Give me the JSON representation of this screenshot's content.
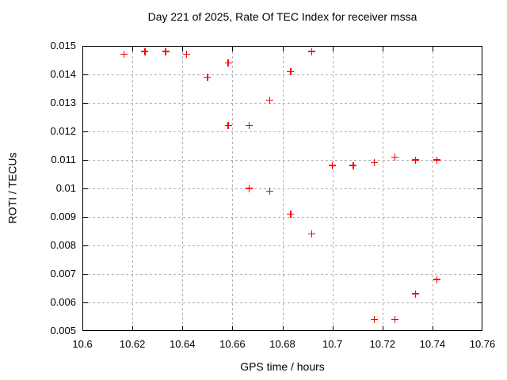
{
  "chart_data": {
    "type": "scatter",
    "title": "Day 221 of 2025, Rate Of TEC Index for receiver mssa",
    "xlabel": "GPS time / hours",
    "ylabel": "ROTI / TECUs",
    "xlim": [
      10.6,
      10.76
    ],
    "ylim": [
      0.005,
      0.015
    ],
    "xticks": {
      "values": [
        10.6,
        10.62,
        10.64,
        10.66,
        10.68,
        10.7,
        10.72,
        10.74,
        10.76
      ],
      "labels": [
        "10.6",
        "10.62",
        "10.64",
        "10.66",
        "10.68",
        "10.7",
        "10.72",
        "10.74",
        "10.76"
      ]
    },
    "yticks": {
      "values": [
        0.005,
        0.006,
        0.007,
        0.008,
        0.009,
        0.01,
        0.011,
        0.012,
        0.013,
        0.014,
        0.015
      ],
      "labels": [
        "0.005",
        "0.006",
        "0.007",
        "0.008",
        "0.009",
        "0.01",
        "0.011",
        "0.012",
        "0.013",
        "0.014",
        "0.015"
      ]
    },
    "grid": true,
    "legend": false,
    "marker": "plus",
    "marker_color": "#ff0000",
    "grid_color": "#b0b0b0",
    "axis_color": "#000000",
    "background_color": "#ffffff",
    "series": [
      {
        "points": [
          [
            10.6167,
            0.0147
          ],
          [
            10.625,
            0.0148
          ],
          [
            10.6333,
            0.0148
          ],
          [
            10.6417,
            0.0147
          ],
          [
            10.65,
            0.0139
          ],
          [
            10.6583,
            0.0144
          ],
          [
            10.6583,
            0.0122
          ],
          [
            10.6667,
            0.0122
          ],
          [
            10.6667,
            0.01
          ],
          [
            10.675,
            0.0131
          ],
          [
            10.675,
            0.0099
          ],
          [
            10.6833,
            0.0141
          ],
          [
            10.6833,
            0.0091
          ],
          [
            10.6917,
            0.0148
          ],
          [
            10.6917,
            0.0084
          ],
          [
            10.7,
            0.0108
          ],
          [
            10.7083,
            0.0108
          ],
          [
            10.7167,
            0.0109
          ],
          [
            10.7167,
            0.0054
          ],
          [
            10.725,
            0.0111
          ],
          [
            10.725,
            0.0054
          ],
          [
            10.7333,
            0.011
          ],
          [
            10.7333,
            0.0063
          ],
          [
            10.7417,
            0.011
          ],
          [
            10.7417,
            0.0068
          ]
        ]
      }
    ]
  }
}
